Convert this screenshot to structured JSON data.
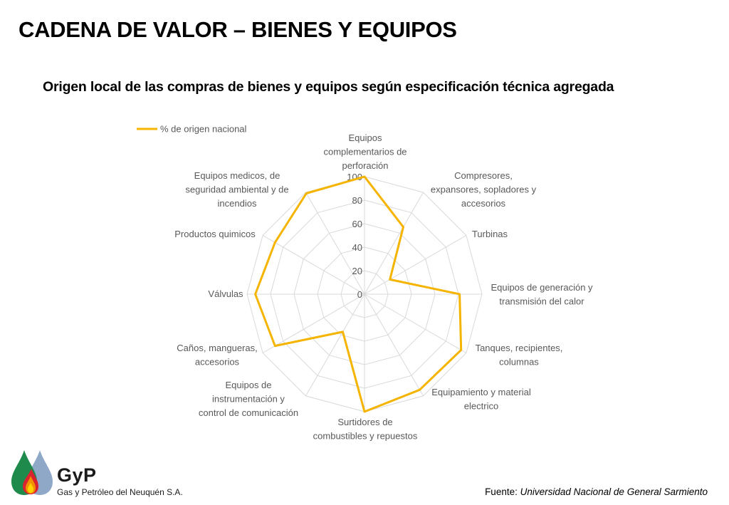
{
  "header": {
    "title": "CADENA DE VALOR – BIENES Y EQUIPOS",
    "subtitle": "Origen local de las compras de bienes y equipos según especificación técnica agregada"
  },
  "chart_data": {
    "type": "radar",
    "categories": [
      [
        "Equipos",
        "complementarios de",
        "perforación"
      ],
      [
        "Compresores,",
        "expansores, sopladores y",
        "accesorios"
      ],
      [
        "Turbinas"
      ],
      [
        "Equipos de generación y",
        "transmisión del calor"
      ],
      [
        "Tanques, recipientes,",
        "columnas"
      ],
      [
        "Equipamiento y material",
        "electrico"
      ],
      [
        "Surtidores de",
        "combustibles y repuestos"
      ],
      [
        "Equipos de",
        "instrumentación y",
        "control de comunicación"
      ],
      [
        "Caños, mangueras,",
        "accesorios"
      ],
      [
        "Válvulas"
      ],
      [
        "Productos quimicos"
      ],
      [
        "Equipos medicos, de",
        "seguridad ambiental y de",
        "incendios"
      ]
    ],
    "series": [
      {
        "name": "% de origen nacional",
        "color": "#F5B400",
        "values": [
          100,
          66,
          25,
          81,
          95,
          94,
          100,
          37,
          88,
          93,
          88,
          99
        ]
      }
    ],
    "rlim": [
      0,
      100
    ],
    "ticks": [
      "0",
      "20",
      "40",
      "60",
      "80",
      "100"
    ],
    "legend_position": "top-left",
    "grid": true
  },
  "footer": {
    "source_label": "Fuente:",
    "source_value": "Universidad Nacional de General Sarmiento"
  },
  "logo": {
    "brand": "GyP",
    "company": "Gas y Petróleo del Neuquén S.A.",
    "colors": {
      "green": "#1E8A4C",
      "blue": "#8FA8C8",
      "red": "#D9232E",
      "orange": "#F39200",
      "yellow": "#FFD200"
    }
  }
}
